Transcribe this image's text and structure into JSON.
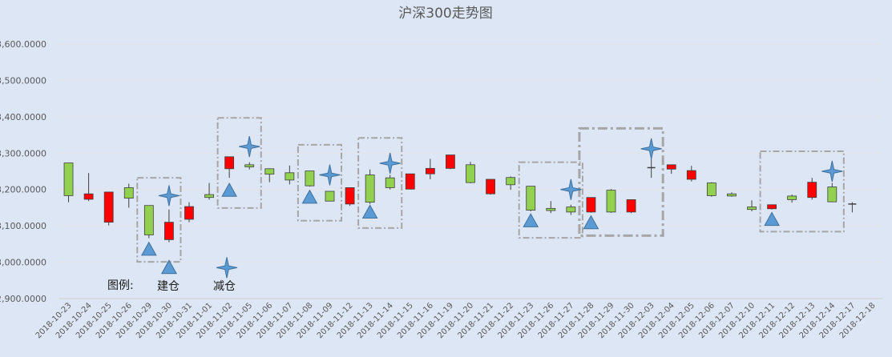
{
  "chart_data": {
    "type": "candlestick",
    "title": "沪深300走势图",
    "y_ticks": [
      "2,900.0000",
      "3,000.0000",
      "3,100.0000",
      "3,200.0000",
      "3,300.0000",
      "3,400.0000",
      "3,500.0000",
      "3,600.0000"
    ],
    "y_tick_values": [
      2900,
      3000,
      3100,
      3200,
      3300,
      3400,
      3500,
      3600
    ],
    "ylim": [
      2900,
      3600
    ],
    "grid": true,
    "colors": {
      "up": "#92d050",
      "down": "#ff0000",
      "marker": "#5b9bd5",
      "box": "#a6a6a6",
      "background": "#dce6f4",
      "grid": "#e4e4e4"
    },
    "categories": [
      "2018-10-23",
      "2018-10-24",
      "2018-10-25",
      "2018-10-26",
      "2018-10-29",
      "2018-10-30",
      "2018-10-31",
      "2018-11-01",
      "2018-11-02",
      "2018-11-05",
      "2018-11-06",
      "2018-11-07",
      "2018-11-08",
      "2018-11-09",
      "2018-11-12",
      "2018-11-13",
      "2018-11-14",
      "2018-11-15",
      "2018-11-16",
      "2018-11-19",
      "2018-11-20",
      "2018-11-21",
      "2018-11-22",
      "2018-11-23",
      "2018-11-26",
      "2018-11-27",
      "2018-11-28",
      "2018-11-29",
      "2018-11-30",
      "2018-12-03",
      "2018-12-04",
      "2018-12-05",
      "2018-12-06",
      "2018-12-07",
      "2018-12-10",
      "2018-12-11",
      "2018-12-12",
      "2018-12-13",
      "2018-12-14",
      "2018-12-17",
      "2018-12-18"
    ],
    "candles": [
      {
        "open": 3183,
        "close": 3273,
        "high": 3273,
        "low": 3165
      },
      {
        "open": 3188,
        "close": 3173,
        "high": 3245,
        "low": 3168
      },
      {
        "open": 3193,
        "close": 3110,
        "high": 3193,
        "low": 3101
      },
      {
        "open": 3176,
        "close": 3205,
        "high": 3216,
        "low": 3150
      },
      {
        "open": 3075,
        "close": 3156,
        "high": 3156,
        "low": 3066
      },
      {
        "open": 3110,
        "close": 3062,
        "high": 3145,
        "low": 3055
      },
      {
        "open": 3153,
        "close": 3118,
        "high": 3165,
        "low": 3110
      },
      {
        "open": 3178,
        "close": 3186,
        "high": 3218,
        "low": 3172
      },
      {
        "open": 3290,
        "close": 3257,
        "high": 3290,
        "low": 3232
      },
      {
        "open": 3262,
        "close": 3268,
        "high": 3275,
        "low": 3255
      },
      {
        "open": 3242,
        "close": 3257,
        "high": 3258,
        "low": 3220
      },
      {
        "open": 3226,
        "close": 3246,
        "high": 3266,
        "low": 3214
      },
      {
        "open": 3210,
        "close": 3251,
        "high": 3251,
        "low": 3208
      },
      {
        "open": 3168,
        "close": 3195,
        "high": 3195,
        "low": 3168
      },
      {
        "open": 3205,
        "close": 3160,
        "high": 3205,
        "low": 3155
      },
      {
        "open": 3165,
        "close": 3240,
        "high": 3255,
        "low": 3160
      },
      {
        "open": 3205,
        "close": 3232,
        "high": 3240,
        "low": 3200
      },
      {
        "open": 3243,
        "close": 3201,
        "high": 3243,
        "low": 3200
      },
      {
        "open": 3258,
        "close": 3243,
        "high": 3284,
        "low": 3228
      },
      {
        "open": 3295,
        "close": 3258,
        "high": 3295,
        "low": 3256
      },
      {
        "open": 3219,
        "close": 3268,
        "high": 3276,
        "low": 3217
      },
      {
        "open": 3228,
        "close": 3188,
        "high": 3228,
        "low": 3186
      },
      {
        "open": 3213,
        "close": 3233,
        "high": 3236,
        "low": 3199
      },
      {
        "open": 3143,
        "close": 3209,
        "high": 3209,
        "low": 3140
      },
      {
        "open": 3142,
        "close": 3148,
        "high": 3168,
        "low": 3135
      },
      {
        "open": 3138,
        "close": 3152,
        "high": 3158,
        "low": 3130
      },
      {
        "open": 3178,
        "close": 3138,
        "high": 3178,
        "low": 3136
      },
      {
        "open": 3138,
        "close": 3198,
        "high": 3201,
        "low": 3136
      },
      {
        "open": 3172,
        "close": 3138,
        "high": 3172,
        "low": 3135
      },
      {
        "open": 3260,
        "close": 3260,
        "high": 3285,
        "low": 3232
      },
      {
        "open": 3268,
        "close": 3256,
        "high": 3268,
        "low": 3243
      },
      {
        "open": 3252,
        "close": 3228,
        "high": 3265,
        "low": 3222
      },
      {
        "open": 3183,
        "close": 3218,
        "high": 3220,
        "low": 3180
      },
      {
        "open": 3182,
        "close": 3188,
        "high": 3192,
        "low": 3180
      },
      {
        "open": 3145,
        "close": 3152,
        "high": 3170,
        "low": 3140
      },
      {
        "open": 3158,
        "close": 3147,
        "high": 3158,
        "low": 3145
      },
      {
        "open": 3172,
        "close": 3182,
        "high": 3186,
        "low": 3164
      },
      {
        "open": 3220,
        "close": 3178,
        "high": 3232,
        "low": 3172
      },
      {
        "open": 3166,
        "close": 3207,
        "high": 3218,
        "low": 3165
      },
      {
        "open": 3160,
        "close": 3160,
        "high": 3165,
        "low": 3137
      },
      {
        "open": null,
        "close": null,
        "high": null,
        "low": null
      }
    ],
    "buy_markers": [
      {
        "index": 4,
        "value": 3035
      },
      {
        "index": 5,
        "value": 2985
      },
      {
        "index": 8,
        "value": 3197
      },
      {
        "index": 12,
        "value": 3178
      },
      {
        "index": 15,
        "value": 3137
      },
      {
        "index": 23,
        "value": 3113
      },
      {
        "index": 26,
        "value": 3108
      },
      {
        "index": 35,
        "value": 3117
      }
    ],
    "sell_markers": [
      {
        "index": 5,
        "value": 3183
      },
      {
        "index": 9,
        "value": 3318
      },
      {
        "index": 13,
        "value": 3240
      },
      {
        "index": 16,
        "value": 3272
      },
      {
        "index": 25,
        "value": 3200
      },
      {
        "index": 29,
        "value": 3312
      },
      {
        "index": 38,
        "value": 3250
      }
    ],
    "boxes": [
      {
        "from": 4,
        "to": 5,
        "top": 3232,
        "bottom": 3001
      },
      {
        "from": 8,
        "to": 9,
        "top": 3397,
        "bottom": 3149
      },
      {
        "from": 12,
        "to": 13,
        "top": 3323,
        "bottom": 3114
      },
      {
        "from": 15,
        "to": 16,
        "top": 3342,
        "bottom": 3094
      },
      {
        "from": 23,
        "to": 25,
        "top": 3275,
        "bottom": 3067
      },
      {
        "from": 26,
        "to": 29,
        "top": 3368,
        "bottom": 3073
      },
      {
        "from": 35,
        "to": 38,
        "top": 3305,
        "bottom": 3084
      }
    ],
    "legend": {
      "label": "图例:",
      "buy_label": "建仓",
      "sell_label": "减仓",
      "placement": "bottom-left"
    }
  }
}
